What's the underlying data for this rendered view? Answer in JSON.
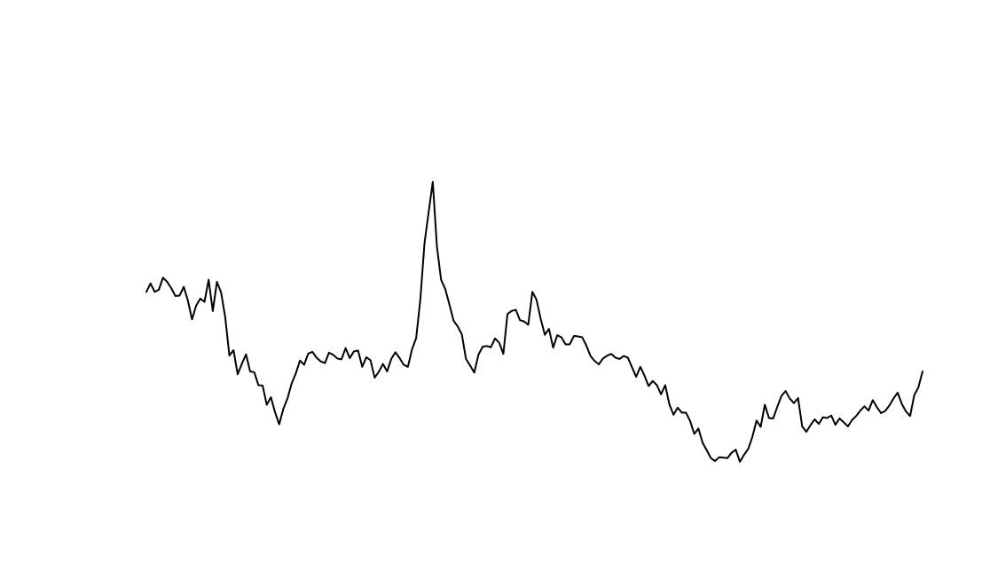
{
  "chart_data": {
    "type": "line",
    "title": "",
    "xlabel": "",
    "ylabel": "",
    "grid": false,
    "legend": "none",
    "ylim": [
      0,
      100
    ],
    "colors": {
      "line": "#000000",
      "background": "#ffffff"
    },
    "series": [
      {
        "values": [
          49.1,
          51.1,
          49.1,
          49.6,
          52.5,
          51.5,
          50.0,
          48.1,
          48.2,
          50.3,
          47.0,
          42.5,
          45.8,
          47.5,
          46.7,
          52.0,
          44.5,
          51.5,
          49.0,
          43.0,
          33.8,
          35.1,
          29.3,
          31.8,
          34.1,
          30.0,
          29.8,
          26.7,
          26.6,
          22.0,
          23.8,
          20.2,
          17.3,
          21.0,
          23.5,
          27.1,
          29.5,
          32.6,
          31.6,
          34.3,
          34.7,
          33.3,
          32.4,
          32.0,
          34.5,
          34.0,
          33.1,
          32.9,
          35.6,
          33.2,
          34.8,
          35.0,
          31.1,
          33.4,
          32.7,
          28.5,
          29.9,
          31.8,
          30.0,
          33.0,
          34.6,
          33.2,
          31.6,
          31.1,
          35.3,
          38.0,
          47.2,
          60.7,
          68.2,
          75.5,
          60.0,
          52.0,
          49.8,
          46.1,
          42.2,
          40.8,
          38.9,
          33.0,
          31.4,
          29.7,
          34.0,
          35.9,
          36.1,
          35.8,
          37.9,
          36.9,
          34.2,
          43.8,
          44.5,
          44.8,
          42.3,
          42.0,
          41.2,
          49.1,
          47.2,
          42.6,
          38.8,
          40.2,
          35.7,
          38.7,
          38.2,
          36.5,
          36.5,
          38.5,
          38.4,
          38.2,
          36.2,
          33.7,
          32.5,
          31.7,
          33.1,
          33.8,
          34.2,
          33.3,
          33.0,
          33.7,
          33.3,
          31.0,
          28.7,
          31.1,
          29.0,
          26.5,
          27.7,
          26.7,
          24.5,
          26.7,
          22.1,
          19.6,
          21.3,
          20.1,
          20.1,
          18.1,
          15.0,
          16.3,
          12.9,
          11.1,
          9.2,
          8.5,
          9.4,
          9.3,
          9.2,
          10.5,
          11.2,
          8.3,
          10.0,
          11.4,
          14.3,
          18.2,
          16.7,
          22.0,
          18.8,
          18.7,
          21.5,
          24.1,
          25.3,
          23.5,
          22.4,
          23.6,
          16.8,
          15.5,
          17.1,
          18.5,
          17.4,
          19.0,
          18.8,
          19.4,
          17.2,
          18.7,
          17.8,
          16.8,
          18.3,
          19.3,
          20.6,
          21.6,
          20.6,
          23.1,
          21.4,
          20.0,
          20.5,
          21.8,
          23.5,
          24.9,
          22.2,
          20.4,
          19.3,
          24.3,
          26.2,
          30.0
        ]
      }
    ]
  }
}
